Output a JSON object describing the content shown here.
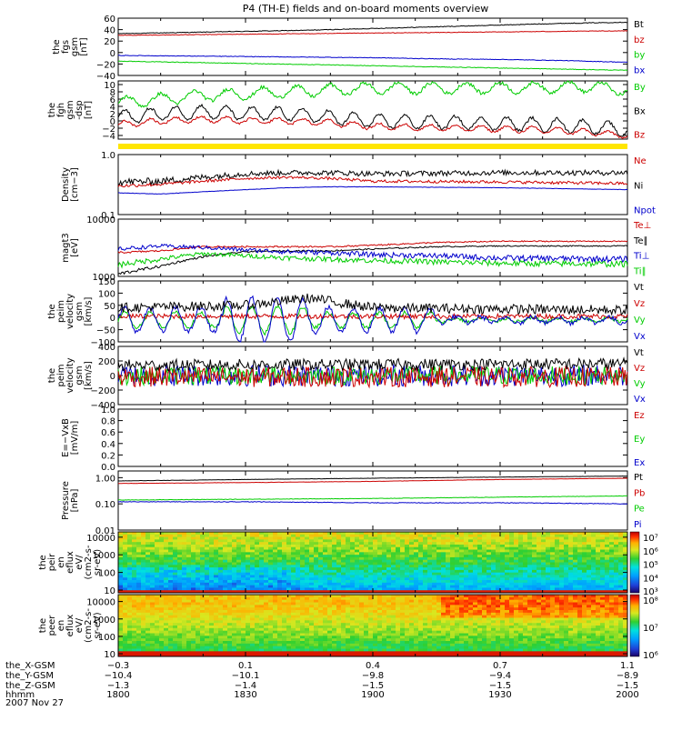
{
  "title": "P4 (TH-E) fields and on-board moments overview",
  "date_label": "2007 Nov 27",
  "colors": {
    "black": "#000000",
    "red": "#cc0000",
    "green": "#00cc00",
    "blue": "#0000cc",
    "yellow": "#ffe600"
  },
  "chart_data": [
    {
      "id": "fgs",
      "type": "line",
      "ylabel": [
        "the",
        "fgs",
        "gsm",
        "[nT]"
      ],
      "ylim": [
        -40,
        60
      ],
      "yticks": [
        "60",
        "40",
        "20",
        "0",
        "−20",
        "−40"
      ],
      "legend": [
        {
          "label": "Bt",
          "color": "black"
        },
        {
          "label": "bz",
          "color": "red"
        },
        {
          "label": "by",
          "color": "green"
        },
        {
          "label": "bx",
          "color": "blue"
        }
      ],
      "series": [
        {
          "name": "Bt",
          "color": "black",
          "x": [
            1800,
            1815,
            1830,
            1845,
            1900,
            1915,
            1930,
            1945,
            2000
          ],
          "values": [
            33,
            35,
            37,
            39,
            42,
            45,
            48,
            51,
            53
          ],
          "noise": 0.6
        },
        {
          "name": "bz",
          "color": "red",
          "x": [
            1800,
            1815,
            1830,
            1845,
            1900,
            1915,
            1930,
            1945,
            2000
          ],
          "values": [
            30,
            31,
            32,
            33,
            34,
            35,
            36,
            37,
            38
          ],
          "noise": 0.5
        },
        {
          "name": "by",
          "color": "green",
          "x": [
            1800,
            1815,
            1830,
            1845,
            1900,
            1915,
            1930,
            1945,
            2000
          ],
          "values": [
            -15,
            -17,
            -19,
            -21,
            -23,
            -25,
            -27,
            -29,
            -31
          ],
          "noise": 0.5
        },
        {
          "name": "bx",
          "color": "blue",
          "x": [
            1800,
            1815,
            1830,
            1845,
            1900,
            1915,
            1930,
            1945,
            2000
          ],
          "values": [
            -5,
            -6,
            -7,
            -8,
            -9,
            -11,
            -12,
            -14,
            -17
          ],
          "noise": 0.5
        }
      ]
    },
    {
      "id": "fgh",
      "type": "line",
      "ylabel": [
        "the",
        "fgh",
        "gsm",
        "-dsp",
        "[nT]"
      ],
      "ylim": [
        -5,
        11
      ],
      "yticks": [
        "10",
        "8",
        "6",
        "4",
        "2",
        "0",
        "−2",
        "−4"
      ],
      "legend": [
        {
          "label": "By",
          "color": "green"
        },
        {
          "label": "Bx",
          "color": "black"
        },
        {
          "label": "Bz",
          "color": "red"
        }
      ],
      "series": [
        {
          "name": "By",
          "color": "green",
          "x": [
            1800,
            1810,
            1820,
            1830,
            1840,
            1850,
            1900,
            1920,
            1940,
            1950,
            2000
          ],
          "values": [
            5,
            6,
            7,
            7.5,
            8,
            8.5,
            9,
            9,
            9.2,
            9.5,
            8.5
          ],
          "osc": 1.5,
          "oscPeriod": 4,
          "noise": 0.5
        },
        {
          "name": "Bx",
          "color": "black",
          "x": [
            1800,
            1810,
            1820,
            1830,
            1840,
            1850,
            1900,
            1920,
            1940,
            1950,
            2000
          ],
          "values": [
            1,
            2,
            2.5,
            2,
            2,
            1,
            0,
            -0.5,
            -1,
            -1.5,
            -2.5
          ],
          "osc": 1.8,
          "oscPeriod": 3,
          "noise": 0.4
        },
        {
          "name": "Bz",
          "color": "red",
          "x": [
            1800,
            1810,
            1820,
            1830,
            1840,
            1850,
            1900,
            1920,
            1940,
            1950,
            2000
          ],
          "values": [
            -1,
            0,
            0.5,
            0,
            0,
            -0.5,
            -1.5,
            -2,
            -2.5,
            -3,
            -4
          ],
          "osc": 0.8,
          "oscPeriod": 3,
          "noise": 0.3
        }
      ]
    },
    {
      "id": "density",
      "type": "line",
      "scale": "log",
      "ylabel": [
        "Density",
        "[cm−3]"
      ],
      "ylim": [
        0.1,
        1.0
      ],
      "yticks": [
        "1.0",
        "0.1"
      ],
      "legend": [
        {
          "label": "Ne",
          "color": "red"
        },
        {
          "label": "Ni",
          "color": "black"
        },
        {
          "label": "Npot",
          "color": "blue"
        }
      ],
      "series": [
        {
          "name": "Ni",
          "color": "black",
          "x": [
            1800,
            1810,
            1820,
            1830,
            1840,
            1850,
            1900,
            1930,
            2000
          ],
          "values": [
            0.35,
            0.36,
            0.42,
            0.48,
            0.5,
            0.5,
            0.48,
            0.5,
            0.5
          ],
          "noise": 0.05
        },
        {
          "name": "Ne",
          "color": "red",
          "x": [
            1800,
            1810,
            1820,
            1830,
            1840,
            1850,
            1900,
            1930,
            2000
          ],
          "values": [
            0.3,
            0.32,
            0.36,
            0.4,
            0.42,
            0.4,
            0.36,
            0.35,
            0.33
          ],
          "noise": 0.02
        },
        {
          "name": "Npot",
          "color": "blue",
          "x": [
            1800,
            1810,
            1820,
            1830,
            1840,
            1850,
            1900,
            1930,
            2000
          ],
          "values": [
            0.23,
            0.22,
            0.24,
            0.26,
            0.28,
            0.29,
            0.29,
            0.28,
            0.26
          ],
          "noise": 0.002
        }
      ]
    },
    {
      "id": "temperature",
      "type": "line",
      "scale": "log",
      "ylabel": [
        "magt3",
        "[eV]"
      ],
      "ylim": [
        1000,
        10000
      ],
      "yticks": [
        "10000",
        "1000"
      ],
      "legend": [
        {
          "label": "Te⊥",
          "color": "red"
        },
        {
          "label": "Te∥",
          "color": "black"
        },
        {
          "label": "Ti⊥",
          "color": "blue"
        },
        {
          "label": "Ti∥",
          "color": "green"
        }
      ],
      "series": [
        {
          "name": "Te⊥",
          "color": "red",
          "x": [
            1800,
            1810,
            1820,
            1830,
            1840,
            1850,
            1900,
            1915,
            1930,
            2000
          ],
          "values": [
            2600,
            2800,
            3300,
            3300,
            3300,
            3300,
            3500,
            3900,
            4100,
            4100
          ],
          "noise": 100
        },
        {
          "name": "Te∥",
          "color": "black",
          "x": [
            1800,
            1810,
            1820,
            1830,
            1840,
            1850,
            1900,
            1915,
            1930,
            2000
          ],
          "values": [
            1100,
            1500,
            2200,
            2700,
            2800,
            2800,
            3000,
            3300,
            3400,
            3400
          ],
          "noise": 80
        },
        {
          "name": "Ti⊥",
          "color": "blue",
          "x": [
            1800,
            1810,
            1820,
            1830,
            1840,
            1850,
            1900,
            1915,
            1930,
            2000
          ],
          "values": [
            3000,
            3400,
            3200,
            2900,
            2700,
            2600,
            2400,
            2300,
            2100,
            2000
          ],
          "noise": 250
        },
        {
          "name": "Ti∥",
          "color": "green",
          "x": [
            1800,
            1810,
            1820,
            1830,
            1840,
            1850,
            1900,
            1915,
            1930,
            2000
          ],
          "values": [
            1600,
            2000,
            2500,
            2300,
            2100,
            2000,
            1900,
            1800,
            1700,
            1650
          ],
          "noise": 200
        }
      ]
    },
    {
      "id": "velocity-esa",
      "type": "line",
      "ylabel": [
        "the",
        "peim",
        "velocity",
        "gsm",
        "[km/s]"
      ],
      "ylim": [
        -100,
        150
      ],
      "yticks": [
        "150",
        "100",
        "50",
        "0",
        "−50",
        "−100"
      ],
      "legend": [
        {
          "label": "Vt",
          "color": "black"
        },
        {
          "label": "Vz",
          "color": "red"
        },
        {
          "label": "Vy",
          "color": "green"
        },
        {
          "label": "Vx",
          "color": "blue"
        }
      ],
      "series": [
        {
          "name": "Vy",
          "color": "green",
          "x": [
            1800,
            1900,
            2000
          ],
          "values": [
            -10,
            -10,
            -10
          ],
          "osc": 30,
          "oscPeriod": 3,
          "noise": 8
        },
        {
          "name": "Vz",
          "color": "red",
          "x": [
            1800,
            1900,
            2000
          ],
          "values": [
            5,
            5,
            5
          ],
          "noise": 10
        },
        {
          "name": "Vx",
          "color": "blue",
          "x": [
            1800,
            1900,
            2000
          ],
          "values": [
            -10,
            -10,
            -10
          ],
          "osc": 50,
          "oscPeriod": 3,
          "noise": 10
        },
        {
          "name": "Vt",
          "color": "black",
          "x": [
            1800,
            1830,
            1845,
            1900,
            2000
          ],
          "values": [
            40,
            50,
            80,
            40,
            30
          ],
          "noise": 20
        }
      ]
    },
    {
      "id": "velocity-sst",
      "type": "line",
      "ylabel": [
        "the",
        "peim",
        "velocity",
        "gsm",
        "[km/s]"
      ],
      "ylim": [
        -400,
        400
      ],
      "yticks": [
        "400",
        "200",
        "0",
        "−200",
        "−400"
      ],
      "legend": [
        {
          "label": "Vt",
          "color": "black"
        },
        {
          "label": "Vz",
          "color": "red"
        },
        {
          "label": "Vy",
          "color": "green"
        },
        {
          "label": "Vx",
          "color": "blue"
        }
      ],
      "series": [
        {
          "name": "Vx",
          "color": "blue",
          "x": [
            1800,
            1900,
            2000
          ],
          "values": [
            0,
            0,
            0
          ],
          "noise": 150
        },
        {
          "name": "Vy",
          "color": "green",
          "x": [
            1800,
            1900,
            2000
          ],
          "values": [
            0,
            0,
            0
          ],
          "noise": 130
        },
        {
          "name": "Vz",
          "color": "red",
          "x": [
            1800,
            1900,
            2000
          ],
          "values": [
            -20,
            -20,
            -20
          ],
          "noise": 140
        },
        {
          "name": "Vt",
          "color": "black",
          "x": [
            1800,
            1900,
            2000
          ],
          "values": [
            140,
            150,
            160
          ],
          "noise": 80
        }
      ]
    },
    {
      "id": "efield",
      "type": "line",
      "ylabel": [
        "E=−VxB",
        "[mV/m]"
      ],
      "ylim": [
        0.0,
        1.0
      ],
      "yticks": [
        "1.0",
        "0.8",
        "0.6",
        "0.4",
        "0.2",
        "0.0"
      ],
      "legend": [
        {
          "label": "Ez",
          "color": "red"
        },
        {
          "label": "Ey",
          "color": "green"
        },
        {
          "label": "Ex",
          "color": "blue"
        }
      ],
      "series": []
    },
    {
      "id": "pressure",
      "type": "line",
      "scale": "log",
      "ylabel": [
        "Pressure",
        "[nPa]"
      ],
      "ylim": [
        0.01,
        1.8
      ],
      "yticks": [
        "1.00",
        "0.10",
        "0.01"
      ],
      "legend": [
        {
          "label": "Pt",
          "color": "black"
        },
        {
          "label": "Pb",
          "color": "red"
        },
        {
          "label": "Pe",
          "color": "green"
        },
        {
          "label": "Pi",
          "color": "blue"
        }
      ],
      "series": [
        {
          "name": "Pt",
          "color": "black",
          "x": [
            1800,
            1830,
            1900,
            1930,
            2000
          ],
          "values": [
            0.75,
            0.85,
            0.95,
            1.05,
            1.15
          ],
          "noise": 0.01
        },
        {
          "name": "Pb",
          "color": "red",
          "x": [
            1800,
            1830,
            1900,
            1930,
            2000
          ],
          "values": [
            0.6,
            0.65,
            0.72,
            0.85,
            0.95
          ],
          "noise": 0.008
        },
        {
          "name": "Pe",
          "color": "green",
          "x": [
            1800,
            1830,
            1900,
            1930,
            2000
          ],
          "values": [
            0.14,
            0.15,
            0.16,
            0.18,
            0.2
          ],
          "noise": 0.003
        },
        {
          "name": "Pi",
          "color": "blue",
          "x": [
            1800,
            1830,
            1900,
            1930,
            2000
          ],
          "values": [
            0.12,
            0.12,
            0.11,
            0.11,
            0.1
          ],
          "noise": 0.003
        }
      ]
    },
    {
      "id": "peir-eflux",
      "type": "heatmap",
      "scale": "log",
      "ylabel": [
        "the",
        "peir",
        "en",
        "eflux",
        "eV/",
        "(cm2-s-",
        "sr-eV)"
      ],
      "ylim": [
        7,
        20000
      ],
      "yticks": [
        "10000",
        "1000",
        "100",
        "10"
      ],
      "colorbar": {
        "ticks": [
          "10⁷",
          "10⁶",
          "10⁵",
          "10⁴",
          "10³"
        ]
      }
    },
    {
      "id": "peer-eflux",
      "type": "heatmap",
      "scale": "log",
      "ylabel": [
        "the",
        "peer",
        "en",
        "eflux",
        "eV/",
        "(cm2-s-",
        "sr-eV)"
      ],
      "ylim": [
        7,
        25000
      ],
      "yticks": [
        "10000",
        "1000",
        "100",
        "10"
      ],
      "colorbar": {
        "ticks": [
          "10⁸",
          "10⁷",
          "10⁶"
        ]
      }
    }
  ],
  "footer": {
    "x_positions": [
      1800,
      1830,
      1900,
      1930,
      2000
    ],
    "rows": [
      {
        "label": "the_X-GSM",
        "values": [
          "−0.3",
          "0.1",
          "0.4",
          "0.7",
          "1.1"
        ]
      },
      {
        "label": "the_Y-GSM",
        "values": [
          "−10.4",
          "−10.1",
          "−9.8",
          "−9.4",
          "−8.9"
        ]
      },
      {
        "label": "the_Z-GSM",
        "values": [
          "−1.3",
          "−1.4",
          "−1.5",
          "−1.5",
          "−1.5"
        ]
      },
      {
        "label": "hhmm",
        "values": [
          "1800",
          "1830",
          "1900",
          "1930",
          "2000"
        ]
      }
    ]
  }
}
